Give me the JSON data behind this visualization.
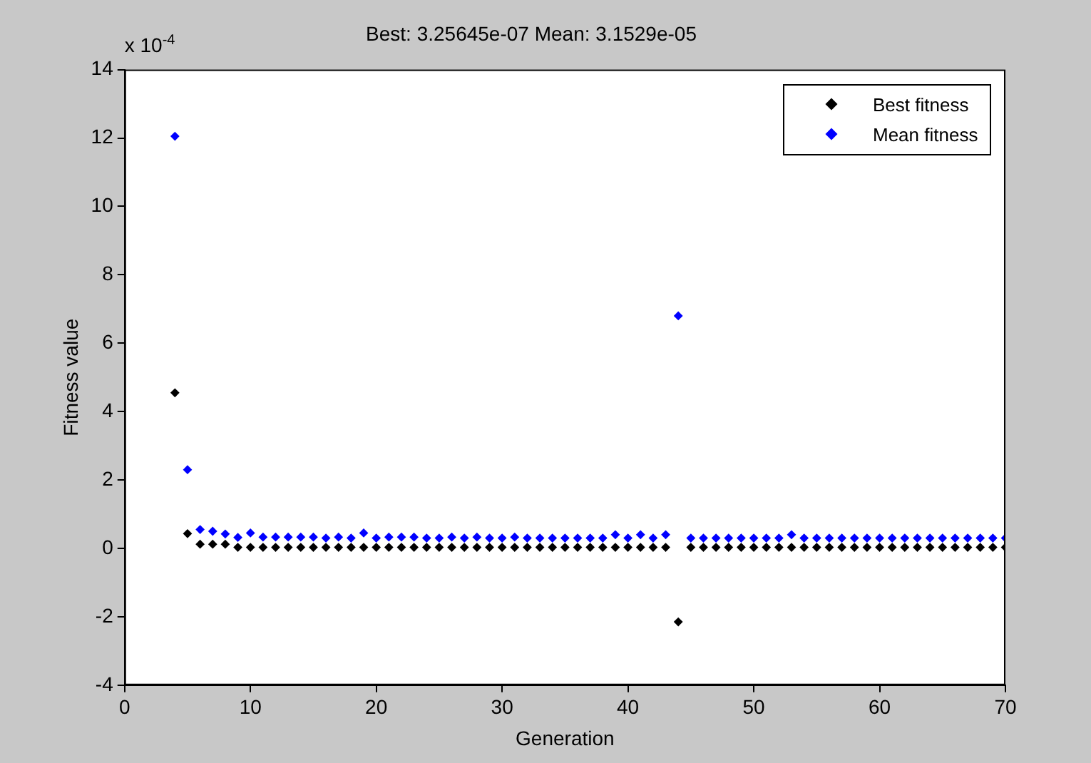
{
  "chart_data": {
    "type": "scatter",
    "title": "Best: 3.25645e-07 Mean: 3.1529e-05",
    "xlabel": "Generation",
    "ylabel": "Fitness value",
    "annotations": [
      "x 10$^{-4}$"
    ],
    "x": [
      4,
      5,
      6,
      7,
      8,
      9,
      10,
      11,
      12,
      13,
      14,
      15,
      16,
      17,
      18,
      19,
      20,
      21,
      22,
      23,
      24,
      25,
      26,
      27,
      28,
      29,
      30,
      31,
      32,
      33,
      34,
      35,
      36,
      37,
      38,
      39,
      40,
      41,
      42,
      43,
      44,
      45,
      46,
      47,
      48,
      49,
      50,
      51,
      52,
      53,
      54,
      55,
      56,
      57,
      58,
      59,
      60,
      61,
      62,
      63,
      64,
      65,
      66,
      67,
      68,
      69,
      70
    ],
    "series": [
      {
        "name": "Best fitness",
        "color": "#000000",
        "values": [
          4.55,
          0.43,
          0.12,
          0.12,
          0.12,
          0.03,
          0.03,
          0.03,
          0.03,
          0.03,
          0.03,
          0.03,
          0.03,
          0.03,
          0.03,
          0.03,
          0.03,
          0.03,
          0.03,
          0.03,
          0.03,
          0.03,
          0.03,
          0.03,
          0.03,
          0.03,
          0.03,
          0.03,
          0.03,
          0.03,
          0.03,
          0.03,
          0.03,
          0.03,
          0.03,
          0.03,
          0.03,
          0.03,
          0.03,
          0.03,
          -2.15,
          0.03,
          0.03,
          0.03,
          0.03,
          0.03,
          0.03,
          0.03,
          0.03,
          0.03,
          0.03,
          0.03,
          0.03,
          0.03,
          0.03,
          0.03,
          0.03,
          0.03,
          0.03,
          0.03,
          0.03,
          0.03,
          0.03,
          0.03,
          0.03,
          0.03,
          0.03
        ]
      },
      {
        "name": "Mean fitness",
        "color": "#0000ff",
        "values": [
          12.05,
          2.3,
          0.55,
          0.5,
          0.42,
          0.32,
          0.45,
          0.33,
          0.33,
          0.33,
          0.33,
          0.33,
          0.3,
          0.33,
          0.3,
          0.45,
          0.3,
          0.33,
          0.33,
          0.33,
          0.3,
          0.3,
          0.33,
          0.3,
          0.33,
          0.3,
          0.3,
          0.33,
          0.3,
          0.3,
          0.3,
          0.3,
          0.3,
          0.3,
          0.3,
          0.4,
          0.3,
          0.4,
          0.3,
          0.4,
          6.8,
          0.3,
          0.3,
          0.3,
          0.3,
          0.3,
          0.3,
          0.3,
          0.3,
          0.4,
          0.3,
          0.3,
          0.3,
          0.3,
          0.3,
          0.3,
          0.3,
          0.3,
          0.3,
          0.3,
          0.3,
          0.3,
          0.3,
          0.3,
          0.3,
          0.3,
          0.3
        ]
      }
    ],
    "xlim": [
      0,
      70
    ],
    "xticks": [
      0,
      10,
      20,
      30,
      40,
      50,
      60,
      70
    ],
    "ylim": [
      -4,
      14
    ],
    "yticks": [
      -4,
      -2,
      0,
      2,
      4,
      6,
      8,
      10,
      12,
      14
    ],
    "marker": "diamond",
    "legend": "top right",
    "grid": false
  }
}
